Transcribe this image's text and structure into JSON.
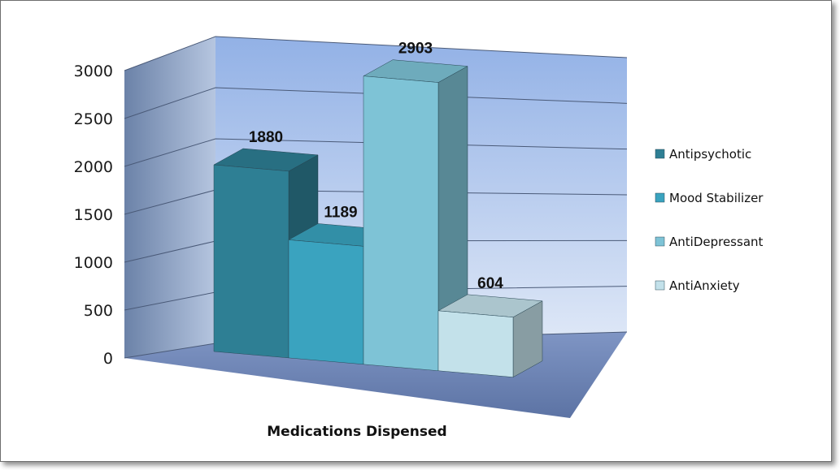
{
  "chart_data": {
    "type": "bar",
    "categories": [
      "Antipsychotic",
      "Mood Stabilizer",
      "AntiDepressant",
      "AntiAnxiety"
    ],
    "values": [
      1880,
      1189,
      2903,
      604
    ],
    "data_labels": [
      "1880",
      "1189",
      "2903",
      "604"
    ],
    "xlabel": "Medications Dispensed",
    "ylabel": "",
    "ylim": [
      0,
      3000
    ],
    "yticks": [
      "0",
      "500",
      "1000",
      "1500",
      "2000",
      "2500",
      "3000"
    ],
    "grid": true,
    "legend": {
      "placement": "right",
      "entries": [
        "Antipsychotic",
        "Mood Stabilizer",
        "AntiDepressant",
        "AntiAnxiety"
      ]
    },
    "colors": [
      "#2e7f94",
      "#3aa3bf",
      "#7ec3d6",
      "#c3e1ea"
    ],
    "style": "3d-column"
  }
}
